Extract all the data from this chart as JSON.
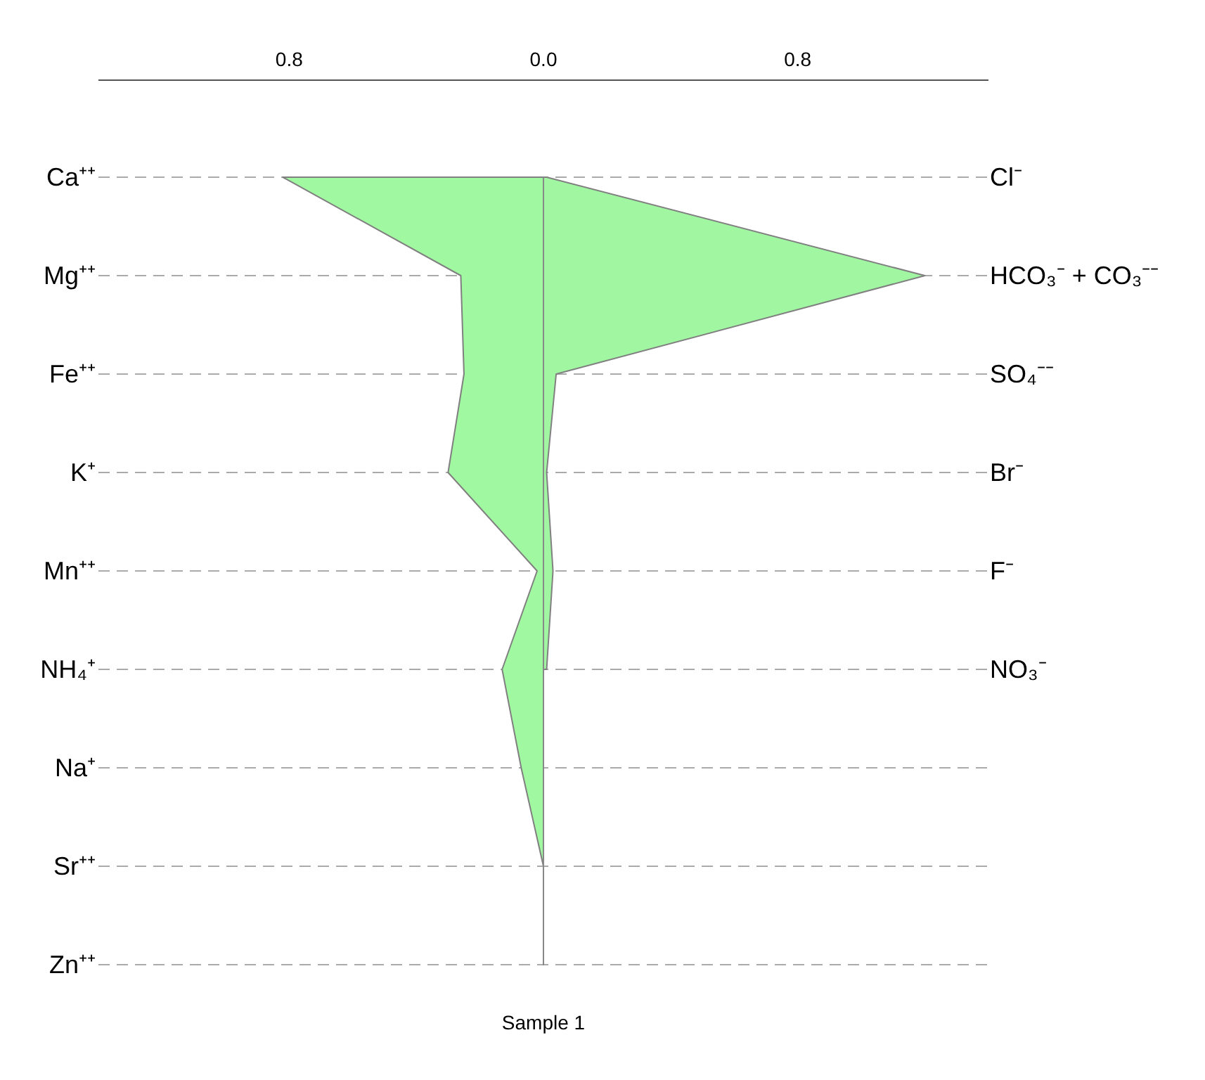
{
  "chart_data": {
    "type": "area",
    "orientation": "horizontal",
    "title": "Sample 1",
    "categories": [
      "Ca⁺⁺",
      "Mg⁺⁺",
      "Fe⁺⁺",
      "K⁺",
      "Mn⁺⁺",
      "NH₄⁺",
      "Na⁺",
      "Sr⁺⁺",
      "Zn⁺⁺"
    ],
    "annotations": [
      "Cl⁻",
      "HCO₃⁻ + CO₃⁻⁻",
      "SO₄⁻⁻",
      "Br⁻",
      "F⁻",
      "NO₃⁻"
    ],
    "series": [
      {
        "color": "#a0f8a0",
        "values": [
          -0.82,
          -0.26,
          -0.25,
          -0.3,
          -0.02,
          -0.13,
          -0.07,
          0,
          0
        ]
      },
      {
        "color": "#a1f7a1",
        "values": [
          0.01,
          1.2,
          0.04,
          0.01,
          0.03,
          0.01,
          null,
          null,
          null
        ]
      }
    ],
    "xlim": [
      -1.4,
      1.4
    ],
    "xticks": [
      {
        "value": -0.8,
        "label": "0.8"
      },
      {
        "value": 0,
        "label": "0.0"
      },
      {
        "value": 0.8,
        "label": "0.8"
      }
    ],
    "ref_lines": [
      {
        "axis": "x",
        "value": 0,
        "color": "#888888"
      }
    ],
    "grid": "y"
  }
}
